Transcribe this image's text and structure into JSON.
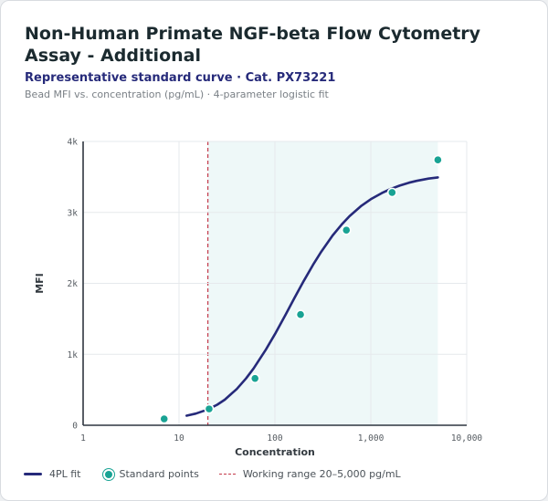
{
  "header": {
    "title": "Non-Human Primate NGF-beta Flow Cytometry Assay - Additional",
    "subtitle": "Representative standard curve · Cat. PX73221",
    "caption": "Bead MFI vs. concentration (pg/mL) · 4-parameter logistic fit"
  },
  "chart_data": {
    "type": "scatter",
    "x_scale": "log",
    "xlabel": "Concentration",
    "ylabel": "MFI",
    "xlim": [
      1,
      10000
    ],
    "ylim": [
      0,
      4000
    ],
    "x_ticks": [
      1,
      10,
      100,
      1000,
      10000
    ],
    "x_tick_labels": [
      "1",
      "10",
      "100",
      "1,000",
      "10,000"
    ],
    "y_ticks": [
      0,
      1000,
      2000,
      3000,
      4000
    ],
    "y_tick_labels": [
      "0",
      "1k",
      "2k",
      "3k",
      "4k"
    ],
    "grid": true,
    "legend_position": "bottom",
    "series": [
      {
        "name": "Standard points",
        "kind": "points",
        "color": "#19a394",
        "x": [
          7,
          20.6,
          62,
          185,
          556,
          1667,
          5000
        ],
        "y": [
          90,
          230,
          660,
          1560,
          2750,
          3280,
          3740
        ]
      },
      {
        "name": "4PL fit",
        "kind": "curve",
        "color": "#262a7a",
        "x": [
          12,
          15,
          20,
          25,
          30,
          40,
          50,
          60,
          80,
          100,
          130,
          160,
          200,
          250,
          300,
          400,
          500,
          600,
          800,
          1000,
          1300,
          1600,
          2000,
          2500,
          3000,
          4000,
          5000
        ],
        "y": [
          135,
          165,
          223,
          290,
          360,
          511,
          660,
          801,
          1060,
          1284,
          1567,
          1794,
          2035,
          2262,
          2433,
          2675,
          2834,
          2947,
          3095,
          3186,
          3272,
          3329,
          3378,
          3419,
          3444,
          3476,
          3493
        ]
      }
    ],
    "working_range": {
      "name": "Working range 20–5,000 pg/mL",
      "x_start": 20,
      "x_end": 5000,
      "line_color": "#c43a4b",
      "fill_color": "#eef8f8"
    }
  }
}
